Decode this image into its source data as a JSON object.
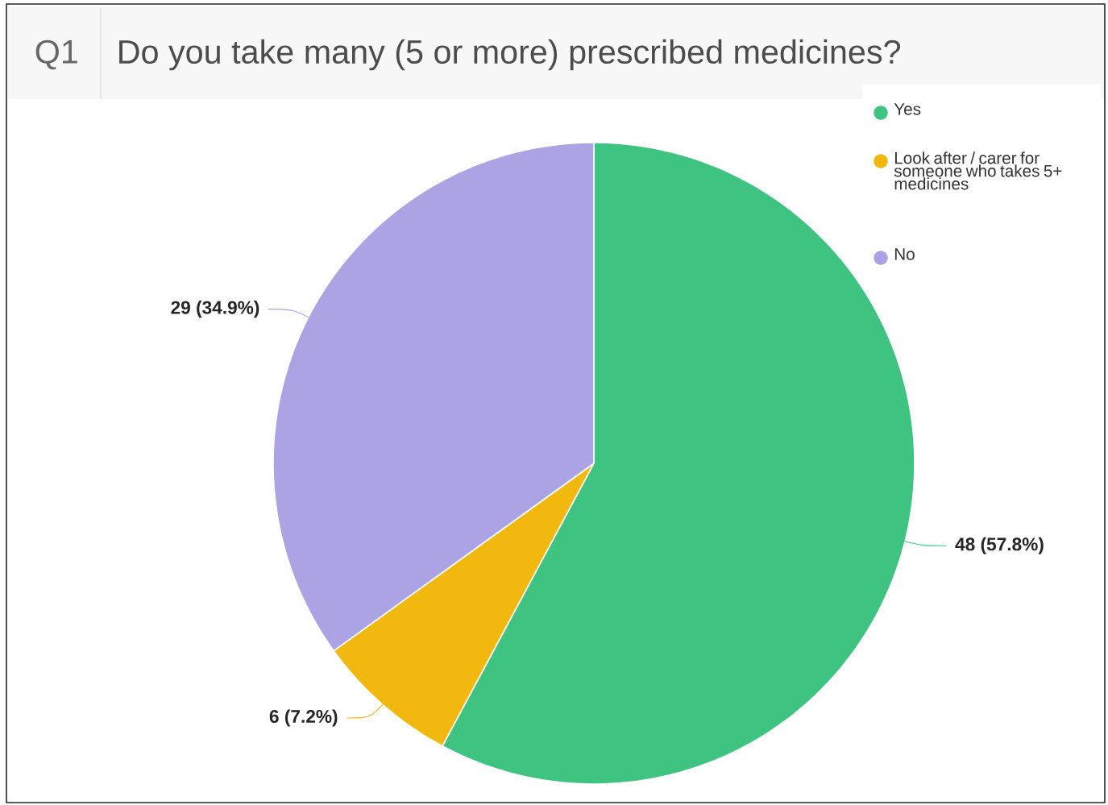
{
  "chart_data": {
    "type": "pie",
    "title": "Do you take many (5 or more) prescribed medicines?",
    "annotations": [
      "Q1"
    ],
    "categories": [
      "Yes",
      "Look after / carer for someone who takes 5+ medicines",
      "No"
    ],
    "values": [
      48,
      6,
      29
    ],
    "colors": [
      "#3fc380",
      "#f1b80f",
      "#aca3e4"
    ],
    "value_labels": [
      "48 (57.8%)",
      "6 (7.2%)",
      "29 (34.9%)"
    ],
    "legend": "top right"
  }
}
